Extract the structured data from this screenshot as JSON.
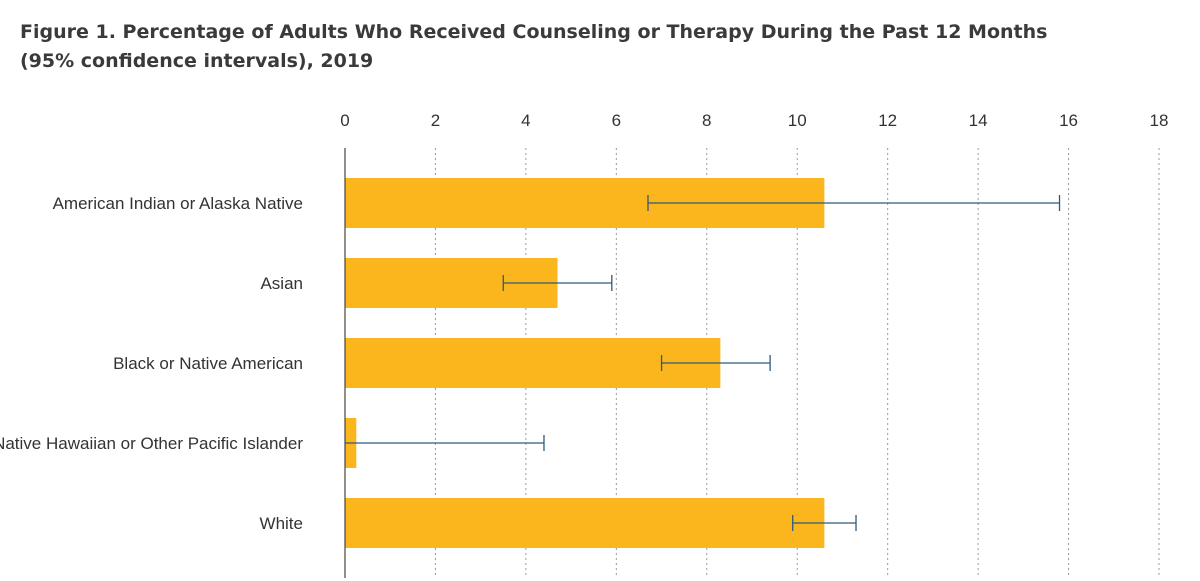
{
  "title_line1": "Figure 1. Percentage of Adults Who Received Counseling or Therapy During the Past 12 Months",
  "title_line2": "(95% confidence intervals), 2019",
  "colors": {
    "bar": "#fbb61d",
    "error_bar": "#2e5a7a",
    "grid": "#9a9a9a",
    "axis": "#444444"
  },
  "chart_data": {
    "type": "bar",
    "orientation": "horizontal",
    "title": "Figure 1. Percentage of Adults Who Received Counseling or Therapy During the Past 12 Months (95% confidence intervals), 2019",
    "xlabel": "",
    "ylabel": "",
    "xlim": [
      0,
      18
    ],
    "x_ticks": [
      0,
      2,
      4,
      6,
      8,
      10,
      12,
      14,
      16,
      18
    ],
    "x_axis_position": "top",
    "grid": "vertical dotted",
    "categories": [
      "American Indian or Alaska Native",
      "Asian",
      "Black or Native American",
      "Native Hawaiian or Other Pacific Islander",
      "White"
    ],
    "values": [
      10.6,
      4.7,
      8.3,
      0.25,
      10.6
    ],
    "ci_low": [
      6.7,
      3.5,
      7.0,
      0.0,
      9.9
    ],
    "ci_high": [
      15.8,
      5.9,
      9.4,
      4.4,
      11.3
    ]
  }
}
